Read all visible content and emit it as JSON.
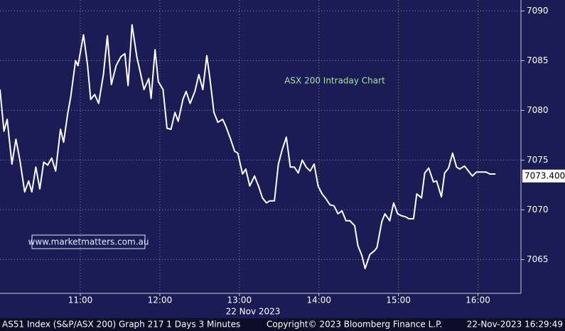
{
  "chart_data": {
    "type": "line",
    "title": "ASX 200 Intraday Chart",
    "annotation": "www.marketmatters.com.au",
    "x_axis_label": "22 Nov 2023",
    "series": [
      {
        "name": "AS51 Index",
        "color": "#ffffff",
        "x": [
          9.99,
          10.04,
          10.08,
          10.14,
          10.19,
          10.24,
          10.3,
          10.35,
          10.39,
          10.44,
          10.49,
          10.54,
          10.59,
          10.64,
          10.69,
          10.75,
          10.79,
          10.84,
          10.88,
          10.94,
          10.97,
          11.04,
          11.09,
          11.13,
          11.18,
          11.23,
          11.29,
          11.34,
          11.39,
          11.45,
          11.51,
          11.56,
          11.6,
          11.65,
          11.71,
          11.76,
          11.8,
          11.86,
          11.89,
          11.94,
          11.98,
          12.04,
          12.09,
          12.14,
          12.19,
          12.23,
          12.29,
          12.33,
          12.38,
          12.44,
          12.49,
          12.54,
          12.59,
          12.63,
          12.68,
          12.73,
          12.79,
          12.83,
          12.89,
          12.94,
          12.98,
          13.04,
          13.08,
          13.13,
          13.19,
          13.24,
          13.29,
          13.34,
          13.38,
          13.44,
          13.49,
          13.54,
          13.59,
          13.64,
          13.69,
          13.74,
          13.79,
          13.84,
          13.89,
          13.94,
          13.99,
          14.04,
          14.09,
          14.14,
          14.19,
          14.24,
          14.29,
          14.34,
          14.39,
          14.45,
          14.49,
          14.54,
          14.58,
          14.64,
          14.7,
          14.73,
          14.79,
          14.83,
          14.89,
          14.94,
          14.99,
          15.04,
          15.09,
          15.13,
          15.19,
          15.23,
          15.29,
          15.33,
          15.38,
          15.44,
          15.48,
          15.54,
          15.58,
          15.63,
          15.68,
          15.73,
          15.77,
          15.83,
          15.88,
          15.93,
          15.98,
          16.04,
          16.1,
          16.15,
          16.22
        ],
        "values": [
          7082.1,
          7077.9,
          7079.1,
          7074.6,
          7077.1,
          7075.0,
          7071.8,
          7072.9,
          7071.8,
          7074.3,
          7072.1,
          7074.8,
          7074.5,
          7075.2,
          7073.9,
          7078.1,
          7076.8,
          7079.6,
          7081.4,
          7085.0,
          7084.5,
          7087.6,
          7084.6,
          7081.1,
          7081.6,
          7080.7,
          7083.6,
          7087.5,
          7082.6,
          7084.5,
          7085.4,
          7085.7,
          7082.5,
          7088.6,
          7085.4,
          7083.6,
          7082.1,
          7083.2,
          7081.2,
          7086.1,
          7082.9,
          7082.1,
          7078.2,
          7078.1,
          7079.8,
          7078.9,
          7081.1,
          7081.9,
          7080.7,
          7081.9,
          7083.6,
          7082.1,
          7085.5,
          7083.2,
          7079.8,
          7078.8,
          7079.1,
          7078.4,
          7077.1,
          7075.9,
          7075.7,
          7073.6,
          7074.1,
          7072.4,
          7073.4,
          7072.4,
          7071.2,
          7070.7,
          7070.9,
          7070.9,
          7074.6,
          7076.1,
          7077.3,
          7074.3,
          7074.3,
          7073.7,
          7075.0,
          7074.3,
          7073.9,
          7074.6,
          7072.4,
          7071.6,
          7071.1,
          7070.5,
          7070.4,
          7069.6,
          7069.9,
          7068.9,
          7068.9,
          7068.4,
          7066.4,
          7065.4,
          7064.1,
          7065.5,
          7065.9,
          7066.2,
          7068.8,
          7069.6,
          7068.9,
          7070.7,
          7069.6,
          7069.4,
          7069.3,
          7069.1,
          7069.1,
          7071.6,
          7071.2,
          7073.7,
          7074.2,
          7072.8,
          7072.9,
          7071.3,
          7073.7,
          7074.2,
          7075.7,
          7074.3,
          7074.1,
          7074.4,
          7073.9,
          7073.4,
          7073.8,
          7073.8,
          7073.8,
          7073.6,
          7073.6
        ]
      }
    ],
    "last_value": {
      "value": 7073.4,
      "label": "7073.400"
    },
    "xlim": [
      9.99,
      16.54
    ],
    "ylim": [
      7061.6,
      7091.1
    ],
    "xticks": [
      {
        "value": 11,
        "label": "11:00"
      },
      {
        "value": 12,
        "label": "12:00"
      },
      {
        "value": 13,
        "label": "13:00"
      },
      {
        "value": 14,
        "label": "14:00"
      },
      {
        "value": 15,
        "label": "15:00"
      },
      {
        "value": 16,
        "label": "16:00"
      }
    ],
    "yticks": [
      7065,
      7070,
      7075,
      7080,
      7085,
      7090
    ],
    "grid": true
  },
  "footer": {
    "security": "AS51 Index (S&P/ASX 200) Graph 217 1 Days 3 Minutes",
    "copyright": "Copyright© 2023 Bloomberg Finance L.P.",
    "timestamp": "22-Nov-2023 16:29:49"
  }
}
